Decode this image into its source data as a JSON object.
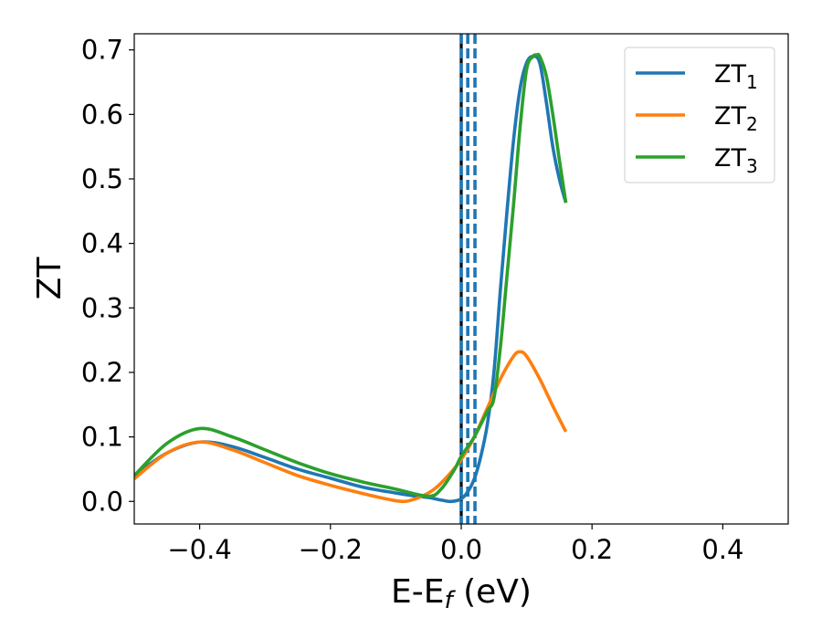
{
  "chart_data": {
    "type": "line",
    "xlabel": "E-E",
    "xlabel_sub": "f",
    "xlabel_unit": " (eV)",
    "ylabel": "ZT",
    "xlim": [
      -0.5,
      0.5
    ],
    "ylim": [
      -0.035,
      0.725
    ],
    "xticks": [
      -0.4,
      -0.2,
      0.0,
      0.2,
      0.4
    ],
    "xtick_labels": [
      "−0.4",
      "−0.2",
      "0.0",
      "0.2",
      "0.4"
    ],
    "yticks": [
      0.0,
      0.1,
      0.2,
      0.3,
      0.4,
      0.5,
      0.6,
      0.7
    ],
    "ytick_labels": [
      "0.0",
      "0.1",
      "0.2",
      "0.3",
      "0.4",
      "0.5",
      "0.6",
      "0.7"
    ],
    "grid": false,
    "legend_position": "top-right",
    "vlines": [
      {
        "x": 0.0,
        "style": "solid",
        "color": "#000000"
      },
      {
        "x": 0.0,
        "style": "dashed",
        "color": "#1f77b4"
      },
      {
        "x": 0.01,
        "style": "dashed",
        "color": "#1f77b4"
      },
      {
        "x": 0.021,
        "style": "dashed",
        "color": "#1f77b4"
      }
    ],
    "series": [
      {
        "name": "ZT",
        "sub": "1",
        "color": "#1f77b4",
        "x": [
          -0.5,
          -0.45,
          -0.4,
          -0.35,
          -0.3,
          -0.25,
          -0.2,
          -0.15,
          -0.1,
          -0.075,
          -0.05,
          -0.03,
          -0.015,
          0.0,
          0.01,
          0.02,
          0.03,
          0.04,
          0.05,
          0.06,
          0.07,
          0.08,
          0.09,
          0.1,
          0.11,
          0.12,
          0.13,
          0.14,
          0.15,
          0.16
        ],
        "y": [
          0.04,
          0.075,
          0.092,
          0.085,
          0.068,
          0.05,
          0.036,
          0.022,
          0.013,
          0.009,
          0.006,
          0.002,
          0.0,
          0.004,
          0.015,
          0.035,
          0.07,
          0.12,
          0.2,
          0.33,
          0.45,
          0.56,
          0.64,
          0.68,
          0.69,
          0.68,
          0.62,
          0.55,
          0.5,
          0.463
        ]
      },
      {
        "name": "ZT",
        "sub": "2",
        "color": "#ff7f0e",
        "x": [
          -0.5,
          -0.45,
          -0.4,
          -0.35,
          -0.3,
          -0.25,
          -0.2,
          -0.15,
          -0.12,
          -0.1,
          -0.09,
          -0.08,
          -0.06,
          -0.04,
          -0.02,
          0.0,
          0.02,
          0.04,
          0.06,
          0.08,
          0.09,
          0.1,
          0.12,
          0.14,
          0.16
        ],
        "y": [
          0.035,
          0.075,
          0.092,
          0.08,
          0.06,
          0.04,
          0.025,
          0.012,
          0.005,
          0.001,
          0.0,
          0.001,
          0.008,
          0.02,
          0.04,
          0.065,
          0.1,
          0.145,
          0.19,
          0.225,
          0.232,
          0.225,
          0.19,
          0.148,
          0.108
        ]
      },
      {
        "name": "ZT",
        "sub": "3",
        "color": "#2ca02c",
        "x": [
          -0.5,
          -0.45,
          -0.4,
          -0.35,
          -0.3,
          -0.25,
          -0.2,
          -0.15,
          -0.1,
          -0.05,
          -0.03,
          -0.01,
          0.0,
          0.02,
          0.04,
          0.05,
          0.06,
          0.07,
          0.08,
          0.09,
          0.1,
          0.11,
          0.115,
          0.12,
          0.13,
          0.14,
          0.15,
          0.16
        ],
        "y": [
          0.04,
          0.09,
          0.113,
          0.1,
          0.08,
          0.06,
          0.043,
          0.03,
          0.019,
          0.008,
          0.02,
          0.05,
          0.07,
          0.1,
          0.14,
          0.16,
          0.24,
          0.35,
          0.46,
          0.58,
          0.67,
          0.69,
          0.692,
          0.69,
          0.66,
          0.6,
          0.53,
          0.463
        ]
      }
    ]
  }
}
